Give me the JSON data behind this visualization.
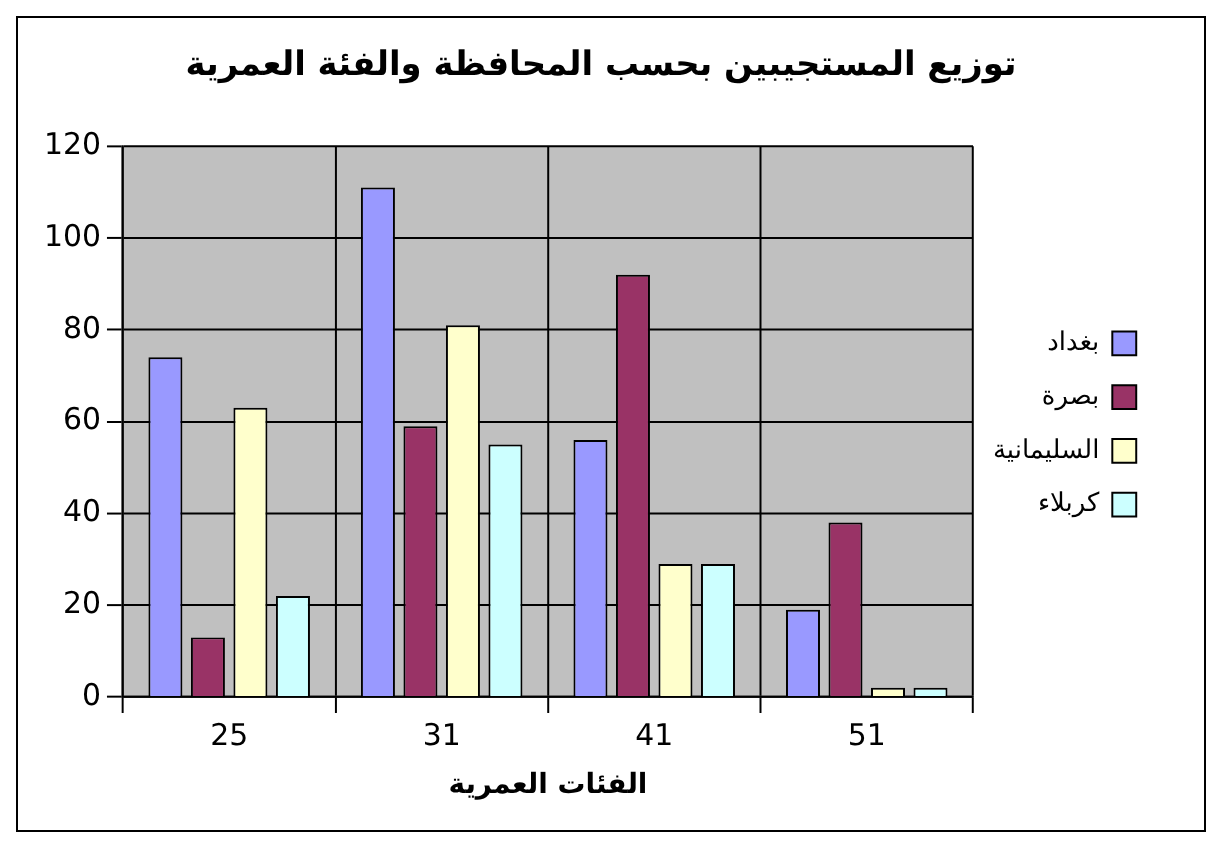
{
  "chart_data": {
    "type": "bar",
    "title": "توزيع المستجيبين بحسب المحافظة والفئة العمرية",
    "xlabel": "الفئات العمرية",
    "categories": [
      "25",
      "31",
      "41",
      "51"
    ],
    "series": [
      {
        "name": "بغداد",
        "color": "#9999ff",
        "values": [
          74,
          111,
          56,
          19
        ]
      },
      {
        "name": "بصرة",
        "color": "#993366",
        "values": [
          13,
          59,
          92,
          38
        ]
      },
      {
        "name": "السليمانية",
        "color": "#ffffcc",
        "values": [
          63,
          81,
          29,
          2
        ]
      },
      {
        "name": "كربلاء",
        "color": "#ccffff",
        "values": [
          22,
          55,
          29,
          2
        ]
      }
    ],
    "ylim": [
      0,
      120
    ],
    "yticks": [
      0,
      20,
      40,
      60,
      80,
      100,
      120
    ],
    "grid": true,
    "legend": "right"
  }
}
